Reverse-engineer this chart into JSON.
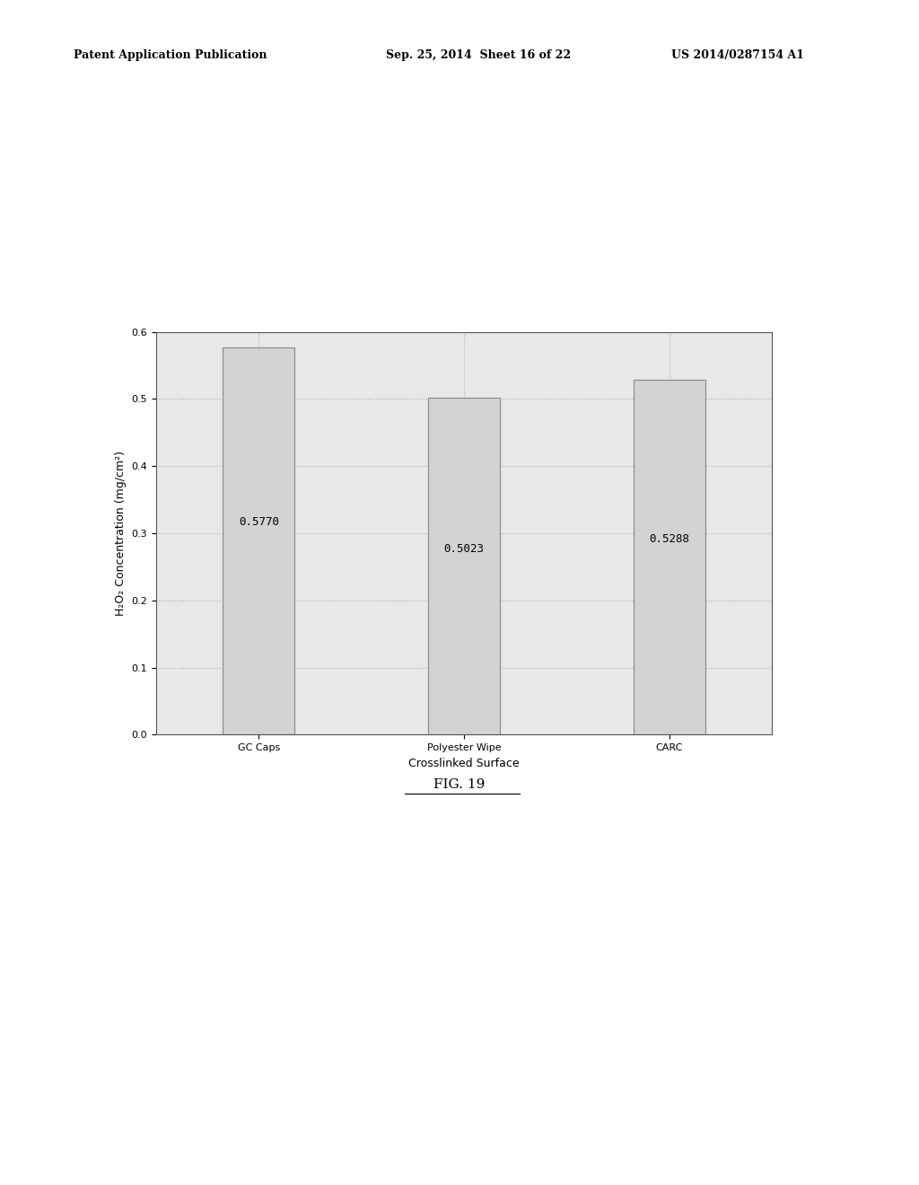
{
  "categories": [
    "GC Caps",
    "Polyester Wipe",
    "CARC"
  ],
  "values": [
    0.577,
    0.5023,
    0.5288
  ],
  "bar_color": "#d3d3d3",
  "bar_edgecolor": "#888888",
  "bar_labels": [
    "0.5770",
    "0.5023",
    "0.5288"
  ],
  "xlabel": "Crosslinked Surface",
  "ylabel": "H₂O₂ Concentration (mg/cm²)",
  "ylim": [
    0.0,
    0.6
  ],
  "yticks": [
    0.0,
    0.1,
    0.2,
    0.3,
    0.4,
    0.5,
    0.6
  ],
  "ytick_labels": [
    "0.0",
    "0.1",
    "0.2",
    "0.3",
    "0.4",
    "0.5",
    "0.6"
  ],
  "figure_title": "FIG. 19",
  "header_left": "Patent Application Publication",
  "header_center": "Sep. 25, 2014  Sheet 16 of 22",
  "header_right": "US 2014/0287154 A1",
  "background_color": "#ffffff",
  "plot_bg_color": "#e8e8e8",
  "grid_color": "#aaaaaa",
  "bar_label_fontsize": 9,
  "axis_label_fontsize": 9,
  "tick_fontsize": 8
}
